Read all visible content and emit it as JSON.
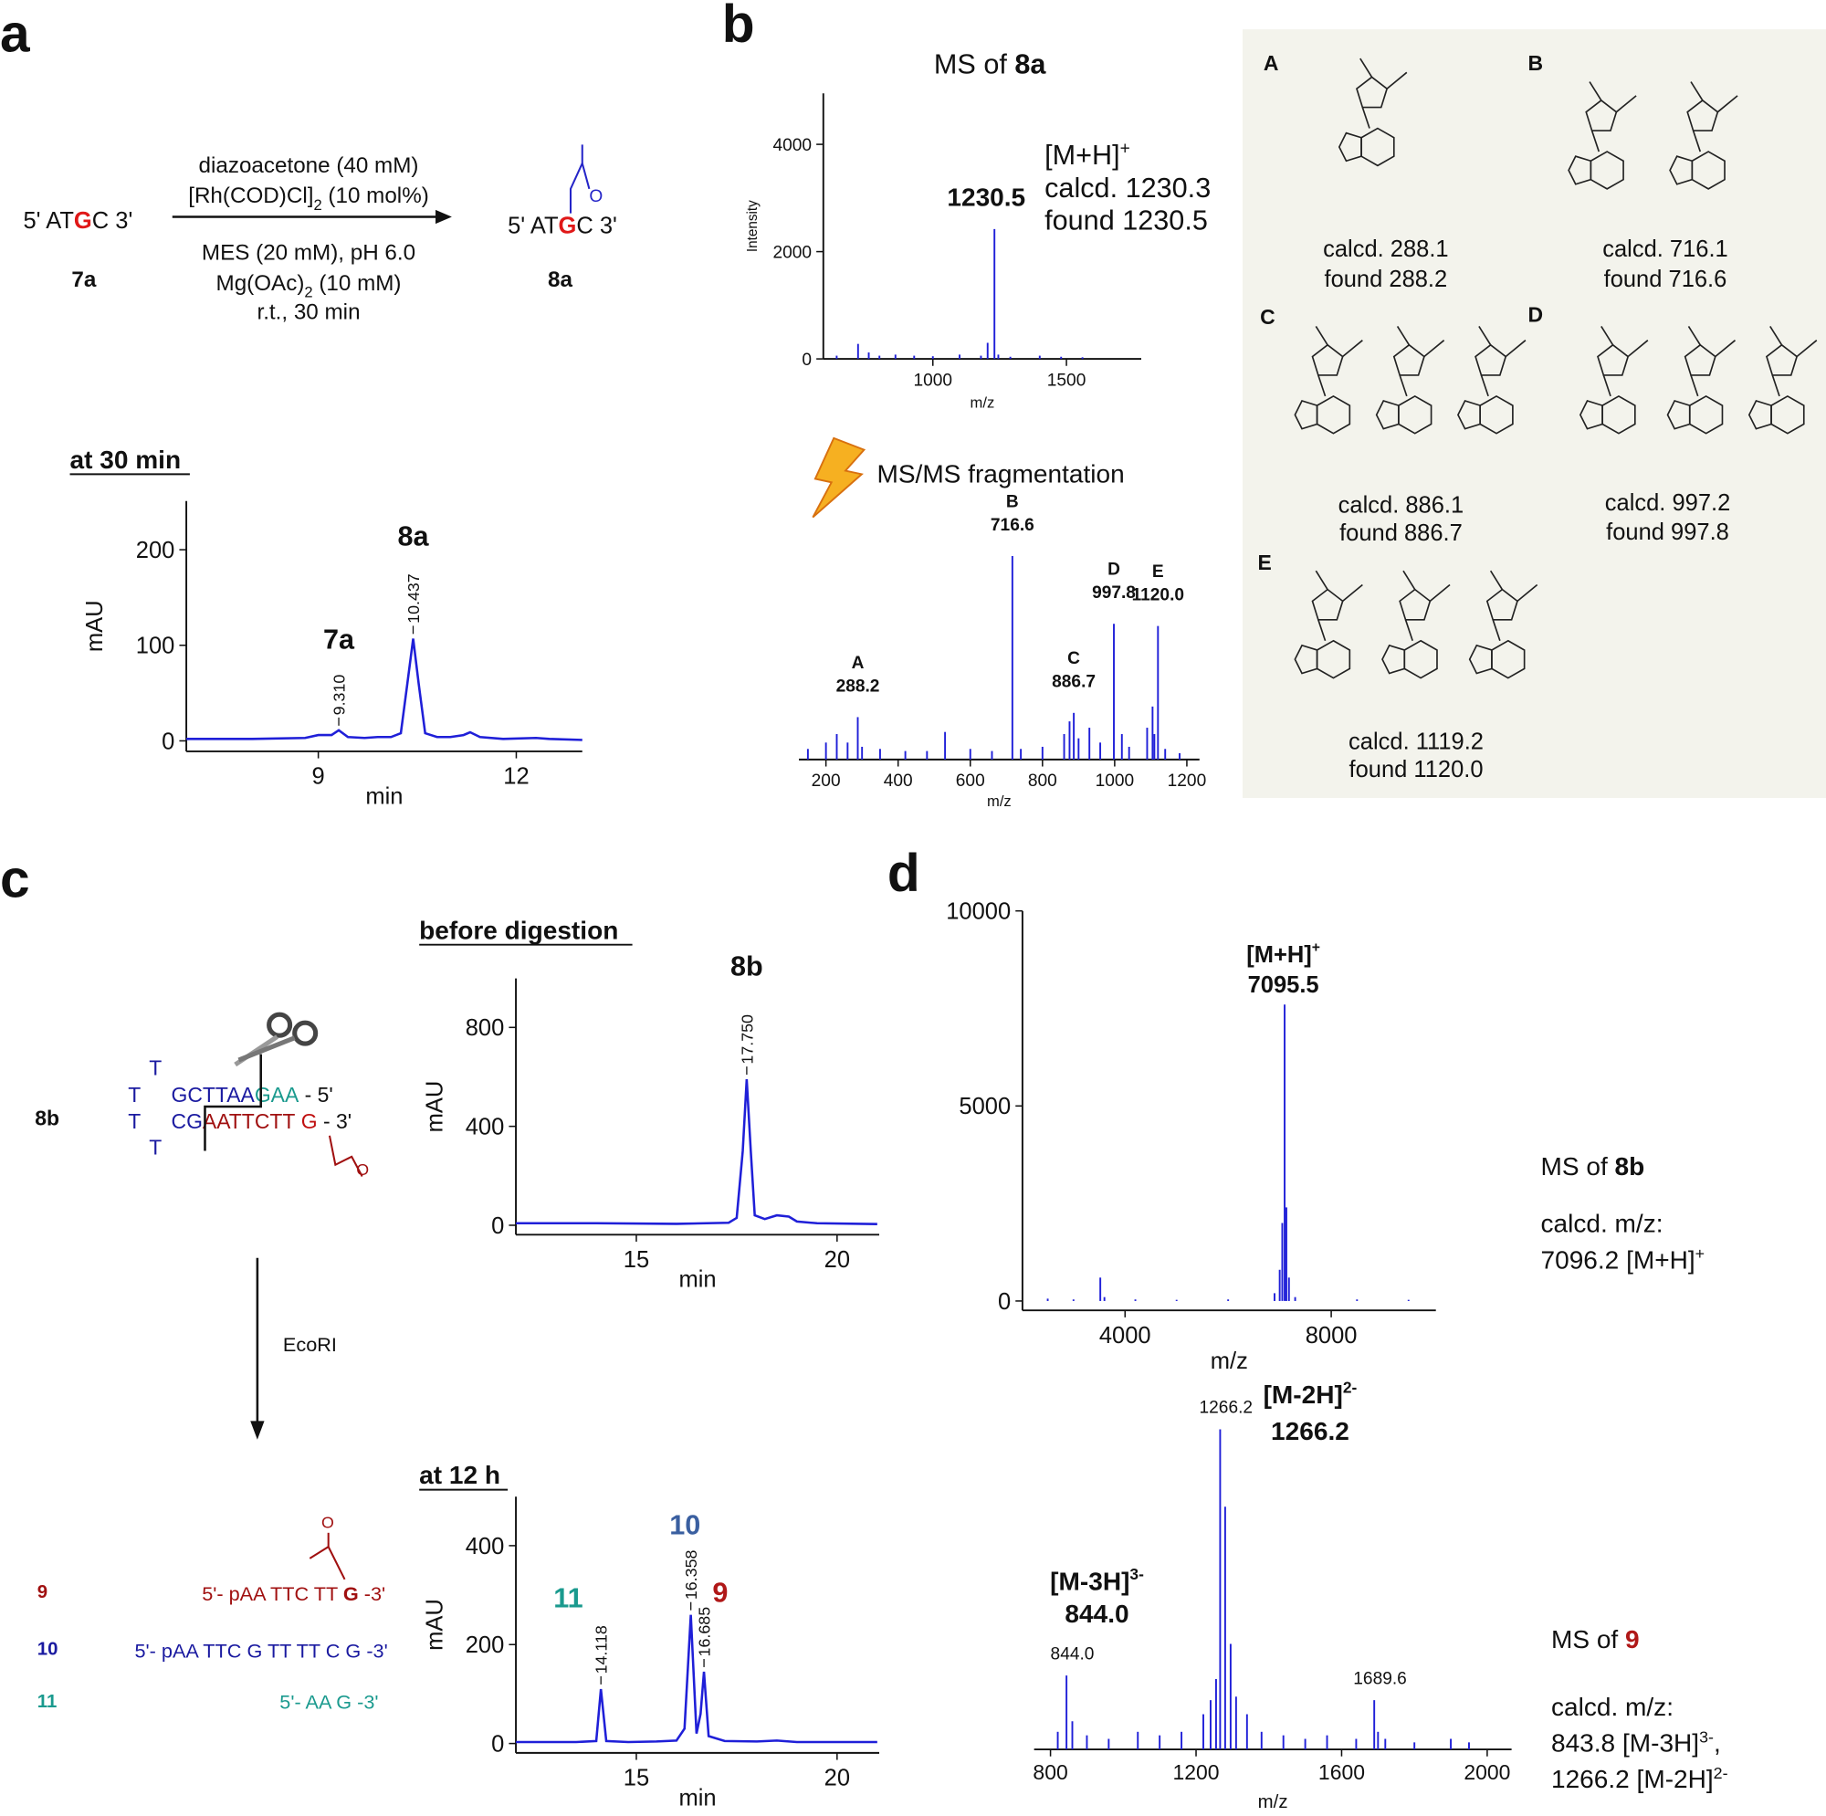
{
  "figure": {
    "panel_labels": [
      "a",
      "b",
      "c",
      "d"
    ],
    "a": {
      "substrate": [
        "5' AT",
        "G",
        "C 3'"
      ],
      "substrate_id": "7a",
      "conditions_above": [
        "diazoacetone (40 mM)",
        [
          "[Rh(COD)Cl]",
          "2",
          " (10 mol%)"
        ]
      ],
      "conditions_below": [
        "MES (20 mM), pH 6.0",
        [
          "Mg(OAc)",
          "2",
          " (10 mM)"
        ],
        "r.t., 30 min"
      ],
      "product": [
        "5' AT",
        "G",
        "C 3'"
      ],
      "product_id": "8a",
      "ketone_o": "O",
      "trace_title": "at 30 min"
    },
    "b": {
      "ms_title": [
        "MS of ",
        "8a"
      ],
      "ion": [
        "[M+H]",
        "+"
      ],
      "calcd": "calcd. 1230.3",
      "found": "found 1230.5",
      "msms_title": "MS/MS fragmentation",
      "fragments": [
        {
          "id": "A",
          "calcd": "calcd. 288.1",
          "found": "found 288.2"
        },
        {
          "id": "B",
          "calcd": "calcd. 716.1",
          "found": "found 716.6"
        },
        {
          "id": "C",
          "calcd": "calcd. 886.1",
          "found": "found 886.7"
        },
        {
          "id": "D",
          "calcd": "calcd. 997.2",
          "found": "found 997.8"
        },
        {
          "id": "E",
          "calcd": "calcd. 1119.2",
          "found": "found 1120.0"
        }
      ]
    },
    "c": {
      "before_title": "before digestion",
      "after_title": "at 12 h",
      "hairpin_id": "8b",
      "loop": [
        "T",
        "T",
        "T",
        "T"
      ],
      "top_strand": [
        "GCTTAA",
        "GAA",
        " - 5'"
      ],
      "bottom_strand": [
        "CG",
        "AATTCTT",
        " G",
        " - 3'"
      ],
      "ketone_o": "O",
      "enzyme": "EcoRI",
      "products": [
        {
          "id": "9",
          "sequence": [
            "5'- pAA TTC TT ",
            "G",
            " -3'"
          ]
        },
        {
          "id": "10",
          "sequence": "5'- pAA TTC G TT TT C G -3'"
        },
        {
          "id": "11",
          "sequence": "5'- AA G -3'"
        }
      ],
      "product_ketone_o": "O"
    },
    "d": {
      "ms8b": {
        "title": [
          "MS of ",
          "8b"
        ],
        "calcd_label": "calcd. m/z:",
        "calcd": [
          "7096.2 [M+H]",
          "+"
        ]
      },
      "ms9": {
        "title": [
          "MS of ",
          "9"
        ],
        "calcd_label": "calcd. m/z:",
        "calcd_lines": [
          [
            "843.8 [M-3H]",
            "3-",
            ","
          ],
          [
            "1266.2 [M-2H]",
            "2-"
          ]
        ]
      }
    }
  },
  "chart_data": [
    {
      "type": "line",
      "color": "#1f1fd8",
      "x_label": "min",
      "y_label": "mAU",
      "xlim": [
        7,
        13
      ],
      "ylim": [
        -11,
        251
      ],
      "xticks": [
        9,
        12
      ],
      "yticks": [
        0,
        100,
        200
      ],
      "x": [
        7,
        8,
        8.8,
        9.0,
        9.2,
        9.31,
        9.45,
        9.7,
        9.9,
        10.1,
        10.25,
        10.35,
        10.437,
        10.52,
        10.62,
        10.8,
        11.0,
        11.2,
        11.3,
        11.45,
        11.8,
        12.3,
        12.5,
        13
      ],
      "values": [
        2,
        2,
        3,
        6,
        6,
        11,
        4,
        3,
        4,
        4,
        8,
        60,
        107,
        60,
        8,
        4,
        4,
        6,
        9,
        4,
        2,
        3,
        2,
        1
      ],
      "peaks": [
        {
          "value": 9.31,
          "label": "9.310",
          "name": "7a"
        },
        {
          "value": 10.437,
          "label": "10.437",
          "name": "8a"
        }
      ]
    },
    {
      "type": "stem",
      "color": "#1f1fd8",
      "x_label": "m/z",
      "y_label": "Intensity",
      "xlim": [
        590,
        1780
      ],
      "ylim": [
        0,
        4950
      ],
      "xticks": [
        1000,
        1500
      ],
      "yticks": [
        0,
        2000,
        4000
      ],
      "x": [
        640,
        720,
        760,
        800,
        860,
        930,
        1000,
        1100,
        1180,
        1205,
        1230.5,
        1245,
        1290,
        1400,
        1480,
        1560
      ],
      "values": [
        60,
        280,
        120,
        60,
        80,
        60,
        50,
        80,
        60,
        300,
        2420,
        80,
        40,
        60,
        40,
        30
      ],
      "annotations": [
        {
          "x": 1230.5,
          "label": "1230.5"
        }
      ]
    },
    {
      "type": "stem",
      "color": "#1f1fd8",
      "x_label": "m/z",
      "xlim": [
        125,
        1235
      ],
      "ylim": [
        0,
        100
      ],
      "xticks": [
        200,
        400,
        600,
        800,
        1000,
        1200
      ],
      "x": [
        150,
        200,
        230,
        260,
        288.2,
        300,
        350,
        420,
        480,
        530,
        600,
        660,
        716.6,
        740,
        800,
        860,
        875,
        886.7,
        900,
        930,
        960,
        997.8,
        1020,
        1040,
        1090,
        1105,
        1110,
        1120,
        1140,
        1180
      ],
      "values": [
        5,
        8,
        12,
        8,
        20,
        6,
        5,
        4,
        4,
        13,
        5,
        4,
        96,
        5,
        6,
        12,
        18,
        22,
        10,
        15,
        8,
        64,
        12,
        6,
        15,
        25,
        12,
        63,
        5,
        3
      ],
      "annotations": [
        {
          "x": 288.2,
          "name": "A",
          "label": "288.2"
        },
        {
          "x": 716.6,
          "name": "B",
          "label": "716.6"
        },
        {
          "x": 886.7,
          "name": "C",
          "label": "886.7"
        },
        {
          "x": 997.8,
          "name": "D",
          "label": "997.8"
        },
        {
          "x": 1120,
          "name": "E",
          "label": "1120.0"
        }
      ]
    },
    {
      "type": "line",
      "color": "#1f1fd8",
      "x_label": "min",
      "y_label": "mAU",
      "xlim": [
        12,
        21.05
      ],
      "ylim": [
        -38,
        998
      ],
      "xticks": [
        15,
        20
      ],
      "yticks": [
        0,
        400,
        800
      ],
      "x": [
        12,
        14,
        16,
        17.3,
        17.5,
        17.65,
        17.75,
        17.85,
        17.95,
        18.2,
        18.5,
        18.8,
        19.0,
        19.5,
        21
      ],
      "values": [
        8,
        8,
        6,
        10,
        30,
        300,
        590,
        300,
        40,
        25,
        40,
        35,
        15,
        8,
        5
      ],
      "peaks": [
        {
          "value": 17.75,
          "label": "17.750",
          "name": "8b"
        }
      ]
    },
    {
      "type": "line",
      "color": "#1f1fd8",
      "x_label": "min",
      "y_label": "mAU",
      "xlim": [
        12,
        21.05
      ],
      "ylim": [
        -19,
        499
      ],
      "xticks": [
        15,
        20
      ],
      "yticks": [
        0,
        200,
        400
      ],
      "x": [
        12,
        13.5,
        14.0,
        14.118,
        14.25,
        14.8,
        15.5,
        16.0,
        16.2,
        16.358,
        16.5,
        16.6,
        16.685,
        16.8,
        17.2,
        18,
        18.5,
        19,
        21
      ],
      "values": [
        3,
        3,
        5,
        110,
        5,
        3,
        4,
        6,
        30,
        260,
        20,
        60,
        145,
        15,
        5,
        4,
        6,
        3,
        3
      ],
      "peaks": [
        {
          "value": 14.118,
          "label": "14.118",
          "name": "11",
          "name_color": "#1a9a8e"
        },
        {
          "value": 16.358,
          "label": "16.358",
          "name": "10",
          "name_color": "#3a5fa0"
        },
        {
          "value": 16.685,
          "label": "16.685",
          "name": "9",
          "name_color": "#b01818"
        }
      ]
    },
    {
      "type": "stem",
      "color": "#1f1fd8",
      "x_label": "m/z",
      "xlim": [
        2010,
        10030
      ],
      "ylim": [
        -240,
        10000
      ],
      "xticks": [
        4000,
        8000
      ],
      "yticks": [
        0,
        5000,
        10000
      ],
      "x": [
        2500,
        3000,
        3520,
        3600,
        4200,
        5000,
        6000,
        6900,
        7000,
        7050,
        7095.5,
        7130,
        7180,
        7300,
        8500,
        9500
      ],
      "values": [
        60,
        40,
        600,
        100,
        40,
        30,
        40,
        200,
        800,
        2000,
        7600,
        2400,
        600,
        100,
        40,
        30
      ],
      "ions": [
        {
          "name": [
            "[M+H]",
            "+"
          ],
          "label": "7095.5"
        }
      ]
    },
    {
      "type": "stem",
      "color": "#1f1fd8",
      "x_label": "m/z",
      "xlim": [
        755,
        2067
      ],
      "ylim": [
        0,
        100
      ],
      "xticks": [
        800,
        1200,
        1600,
        2000
      ],
      "x": [
        820,
        844,
        860,
        900,
        960,
        1040,
        1100,
        1160,
        1220,
        1240,
        1255,
        1266.2,
        1280,
        1295,
        1310,
        1340,
        1380,
        1440,
        1500,
        1560,
        1640,
        1689.6,
        1700,
        1720,
        1800,
        1900,
        1950
      ],
      "values": [
        5,
        21,
        8,
        4,
        3,
        5,
        4,
        5,
        10,
        14,
        20,
        91,
        69,
        30,
        15,
        10,
        5,
        4,
        3,
        4,
        3,
        14,
        5,
        3,
        2,
        3,
        2
      ],
      "annotations": [
        {
          "x": 844,
          "label": "844.0"
        },
        {
          "x": 1266.2,
          "label": "1266.2"
        },
        {
          "x": 1689.6,
          "label": "1689.6"
        }
      ],
      "ions": [
        {
          "name": [
            "[M-3H]",
            "3-"
          ],
          "label": "844.0"
        },
        {
          "name": [
            "[M-2H]",
            "2-"
          ],
          "label": "1266.2"
        }
      ]
    }
  ]
}
